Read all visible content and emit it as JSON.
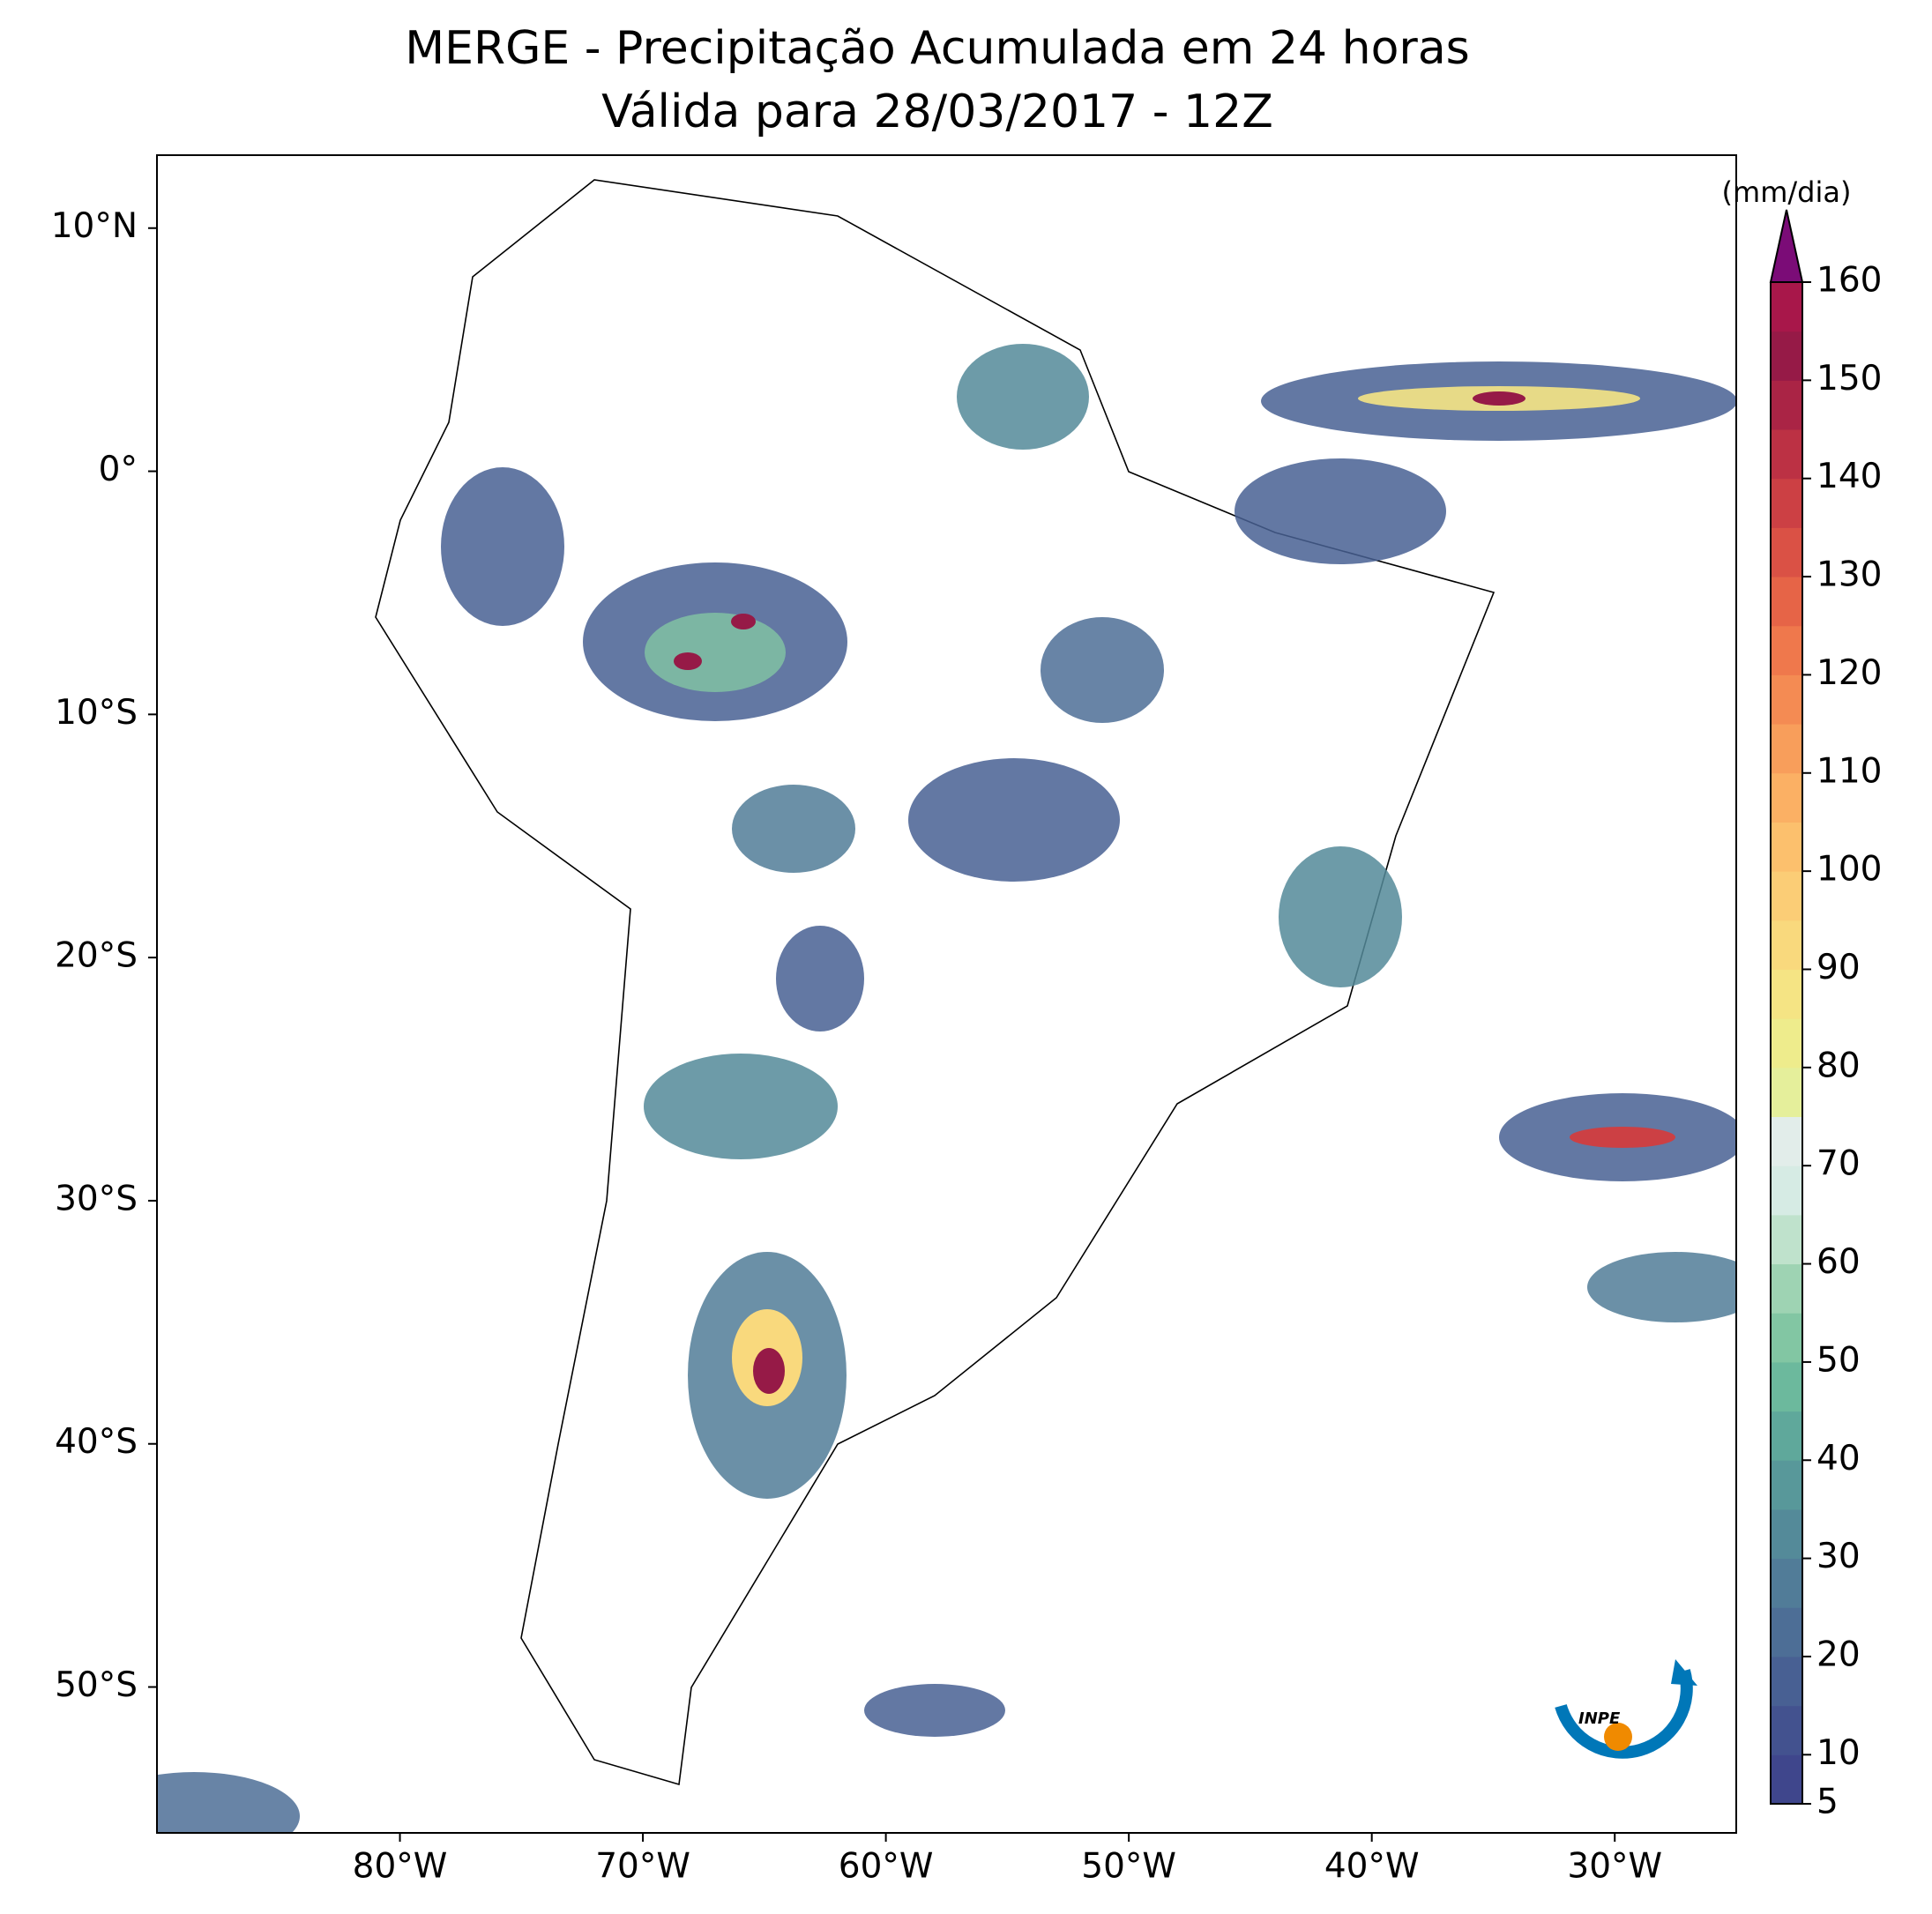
{
  "chart_data": {
    "type": "map",
    "title": "MERGE - Precipitação Acumulada em 24 horas",
    "subtitle": "Válida para 28/03/2017 - 12Z",
    "xlim": [
      -90,
      -25
    ],
    "ylim": [
      -56,
      13
    ],
    "xticks": [
      {
        "value": -80,
        "label": "80°W"
      },
      {
        "value": -70,
        "label": "70°W"
      },
      {
        "value": -60,
        "label": "60°W"
      },
      {
        "value": -50,
        "label": "50°W"
      },
      {
        "value": -40,
        "label": "40°W"
      },
      {
        "value": -30,
        "label": "30°W"
      }
    ],
    "yticks": [
      {
        "value": 10,
        "label": "10°N"
      },
      {
        "value": 0,
        "label": "0°"
      },
      {
        "value": -10,
        "label": "10°S"
      },
      {
        "value": -20,
        "label": "20°S"
      },
      {
        "value": -30,
        "label": "30°S"
      },
      {
        "value": -40,
        "label": "40°S"
      },
      {
        "value": -50,
        "label": "50°S"
      }
    ],
    "colorbar": {
      "label": "(mm/dia)",
      "lim": [
        5,
        160
      ],
      "ticks": [
        5,
        10,
        20,
        30,
        40,
        50,
        60,
        70,
        80,
        90,
        100,
        110,
        120,
        130,
        140,
        150,
        160
      ],
      "colors": [
        "#3f468c",
        "#43528f",
        "#486093",
        "#4d6e96",
        "#517c98",
        "#548a99",
        "#58989a",
        "#5fa89b",
        "#6cb99d",
        "#82c6a3",
        "#9ed3b3",
        "#bfe2cc",
        "#d6ebe4",
        "#e2edea",
        "#e5ef9b",
        "#eeec8c",
        "#f5e484",
        "#f9d97d",
        "#fbcd76",
        "#fcc06d",
        "#fbb064",
        "#f89e5b",
        "#f48b53",
        "#ef784c",
        "#e66447",
        "#da5145",
        "#cc4044",
        "#bc3144",
        "#aa2445",
        "#961a47",
        "#a8174a"
      ],
      "extend_color": "#7b0c77"
    },
    "logo_text": "INPE"
  }
}
